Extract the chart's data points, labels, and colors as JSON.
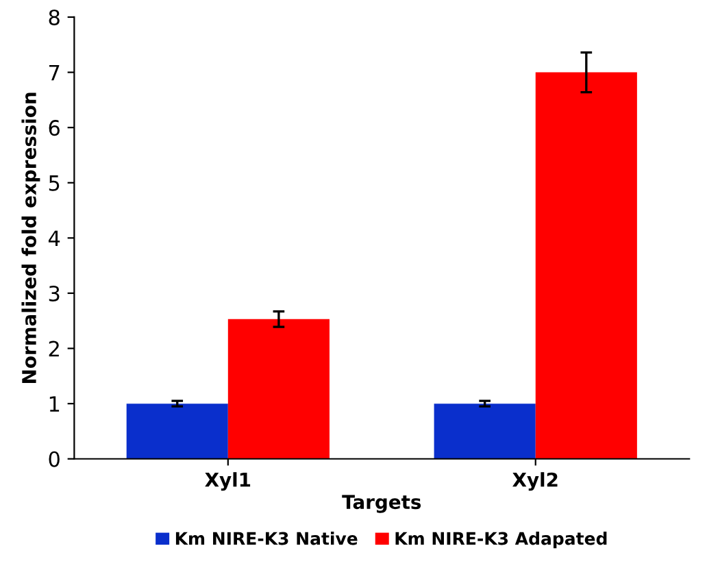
{
  "chart_data": {
    "type": "bar",
    "xlabel": "Targets",
    "ylabel": "Normalized fold expression",
    "categories": [
      "Xyl1",
      "Xyl2"
    ],
    "series": [
      {
        "name": "Km NIRE-K3 Native",
        "color": "#0a2fcc",
        "values": [
          1.0,
          1.0
        ],
        "errors": [
          0.05,
          0.05
        ]
      },
      {
        "name": "Km NIRE-K3 Adapated",
        "color": "#ff0000",
        "values": [
          2.53,
          7.0
        ],
        "errors": [
          0.14,
          0.36
        ]
      }
    ],
    "ylim": [
      0,
      8
    ],
    "yticks": [
      0,
      1,
      2,
      3,
      4,
      5,
      6,
      7,
      8
    ],
    "grid": false,
    "legend": "bottom"
  }
}
